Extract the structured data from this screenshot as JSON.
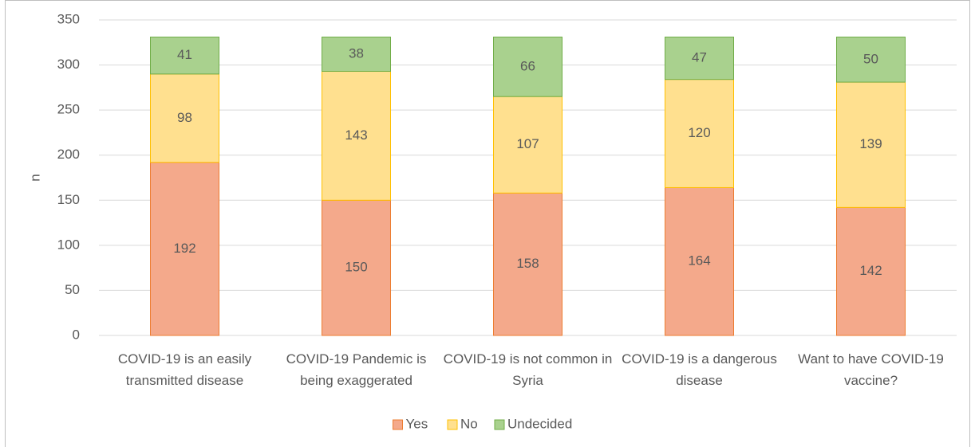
{
  "chart_data": {
    "type": "stacked_bar",
    "categories": [
      "COVID-19 is an easily transmitted disease",
      "COVID-19 Pandemic is being exaggerated",
      "COVID-19 is not common in Syria",
      "COVID-19 is a dangerous disease",
      "Want to have COVID-19 vaccine?"
    ],
    "series": [
      {
        "name": "Yes",
        "color": "#f4a98b",
        "edge_color": "#ed7d31",
        "values": [
          192,
          150,
          158,
          164,
          142
        ]
      },
      {
        "name": "No",
        "color": "#ffe08f",
        "edge_color": "#ffc000",
        "values": [
          98,
          143,
          107,
          120,
          139
        ]
      },
      {
        "name": "Undecided",
        "color": "#a9d18e",
        "edge_color": "#70ad47",
        "values": [
          41,
          38,
          66,
          47,
          50
        ]
      }
    ],
    "y_label": "n",
    "ylim": [
      0,
      350
    ],
    "yticks": [
      0,
      50,
      100,
      150,
      200,
      250,
      300,
      350
    ],
    "grid": true,
    "legend": "bottom"
  }
}
